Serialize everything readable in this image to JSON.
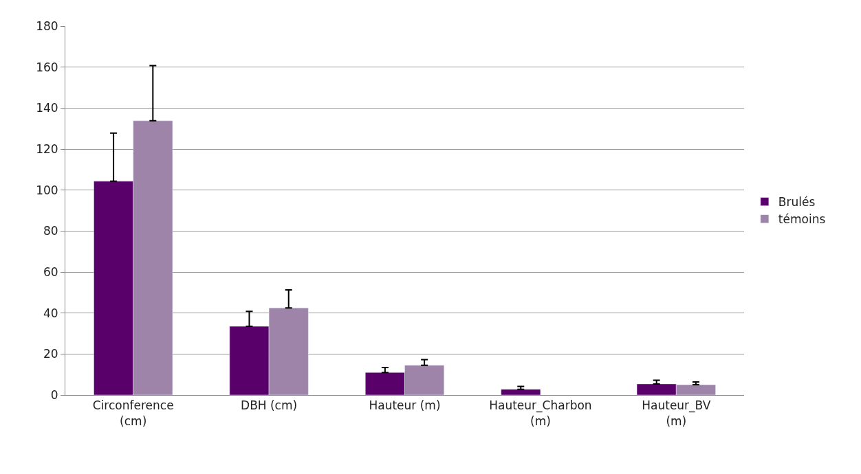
{
  "chart_data": {
    "type": "bar",
    "categories": [
      "Circonference (cm)",
      "DBH (cm)",
      "Hauteur (m)",
      "Hauteur_Charbon (m)",
      "Hauteur_BV (m)"
    ],
    "series": [
      {
        "name": "Brulés",
        "color": "#5a006a",
        "values": [
          104.3,
          33.5,
          11.0,
          2.8,
          5.4
        ],
        "errors": [
          [
            104.3,
            127.8
          ],
          [
            33.5,
            40.8
          ],
          [
            11.0,
            13.4
          ],
          [
            2.8,
            4.2
          ],
          [
            5.4,
            7.2
          ]
        ]
      },
      {
        "name": "témoins",
        "color": "#9d84a8",
        "values": [
          133.8,
          42.5,
          14.5,
          null,
          5.0
        ],
        "errors": [
          [
            133.8,
            160.7
          ],
          [
            42.5,
            51.3
          ],
          [
            14.5,
            17.3
          ],
          null,
          [
            5.0,
            6.4
          ]
        ]
      }
    ],
    "ylim": [
      0,
      180
    ],
    "yticks": [
      0,
      20,
      40,
      60,
      80,
      100,
      120,
      140,
      160,
      180
    ],
    "grid": "y",
    "legend": "right"
  }
}
